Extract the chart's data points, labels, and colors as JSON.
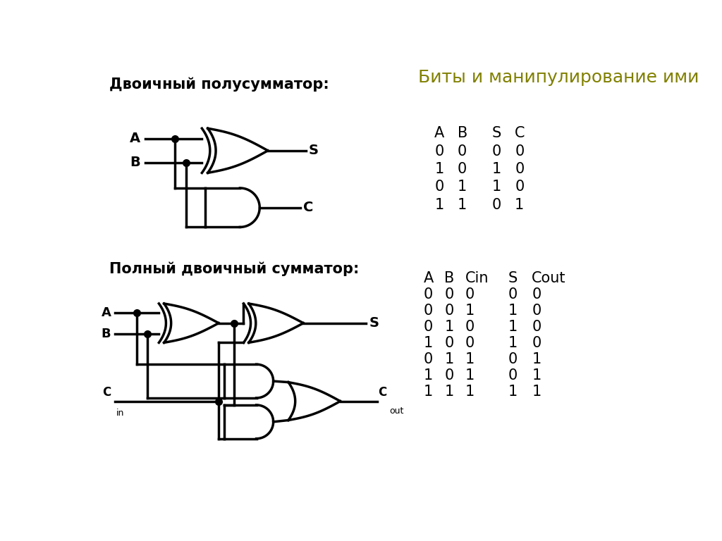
{
  "title_ru": "Биты и манипулирование ими",
  "half_adder_title": "Двоичный полусумматор:",
  "full_adder_title": "Полный двоичный сумматор:",
  "bg_color": "#ffffff",
  "gate_color": "#000000",
  "title_color": "#808000",
  "text_color": "#000000",
  "half_truth_header": [
    "A",
    "B",
    "S",
    "C"
  ],
  "half_truth_data": [
    [
      0,
      0,
      0,
      0
    ],
    [
      1,
      0,
      1,
      0
    ],
    [
      0,
      1,
      1,
      0
    ],
    [
      1,
      1,
      0,
      1
    ]
  ],
  "full_truth_header": [
    "A",
    "B",
    "Cin",
    "S",
    "Cout"
  ],
  "full_truth_data": [
    [
      0,
      0,
      0,
      0,
      0
    ],
    [
      0,
      0,
      1,
      1,
      0
    ],
    [
      0,
      1,
      0,
      1,
      0
    ],
    [
      1,
      0,
      0,
      1,
      0
    ],
    [
      0,
      1,
      1,
      0,
      1
    ],
    [
      1,
      0,
      1,
      0,
      1
    ],
    [
      1,
      1,
      1,
      1,
      1
    ]
  ]
}
